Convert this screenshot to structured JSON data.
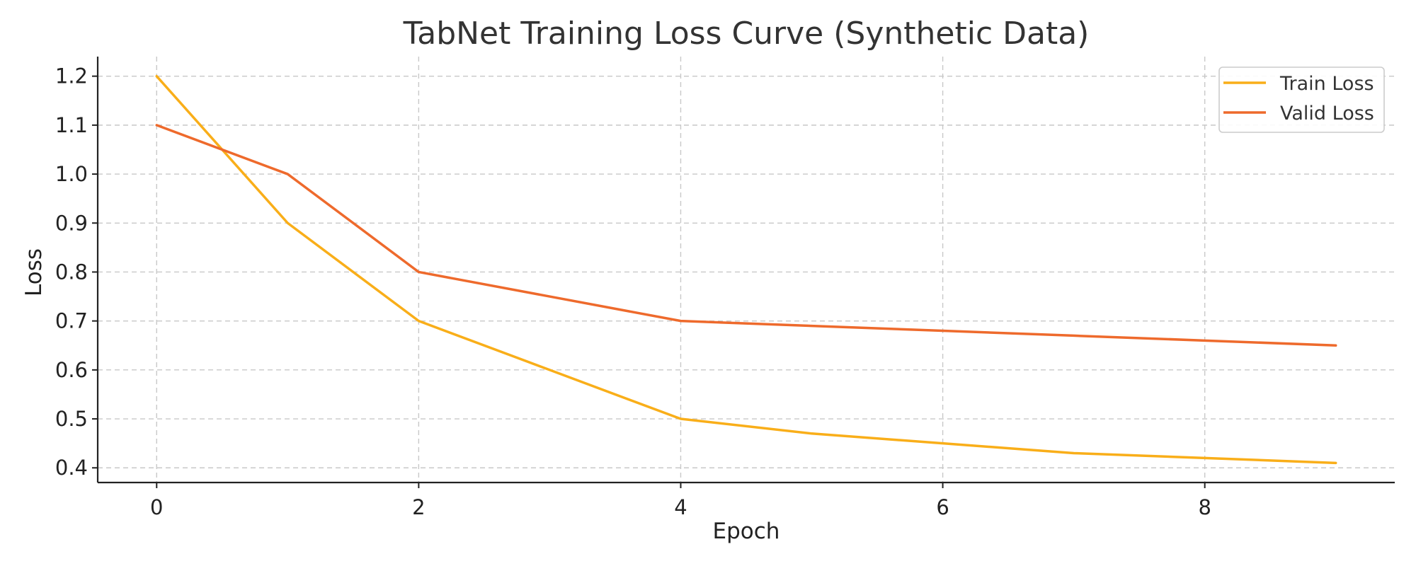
{
  "chart_data": {
    "type": "line",
    "title": "TabNet Training Loss Curve (Synthetic Data)",
    "xlabel": "Epoch",
    "ylabel": "Loss",
    "x": [
      0,
      1,
      2,
      3,
      4,
      5,
      6,
      7,
      8,
      9
    ],
    "series": [
      {
        "name": "Train Loss",
        "color": "#f9ae19",
        "values": [
          1.2,
          0.9,
          0.7,
          0.6,
          0.5,
          0.47,
          0.45,
          0.43,
          0.42,
          0.41
        ]
      },
      {
        "name": "Valid Loss",
        "color": "#ee6a2c",
        "values": [
          1.1,
          1.0,
          0.8,
          0.75,
          0.7,
          0.69,
          0.68,
          0.67,
          0.66,
          0.65
        ]
      }
    ],
    "xlim": [
      -0.45,
      9.45
    ],
    "ylim": [
      0.37,
      1.24
    ],
    "xticks": [
      0,
      2,
      4,
      6,
      8
    ],
    "xtick_labels": [
      "0",
      "2",
      "4",
      "6",
      "8"
    ],
    "yticks": [
      0.4,
      0.5,
      0.6,
      0.7,
      0.8,
      0.9,
      1.0,
      1.1,
      1.2
    ],
    "ytick_labels": [
      "0.4",
      "0.5",
      "0.6",
      "0.7",
      "0.8",
      "0.9",
      "1.0",
      "1.1",
      "1.2"
    ],
    "grid": true,
    "legend_position": "top-right"
  }
}
